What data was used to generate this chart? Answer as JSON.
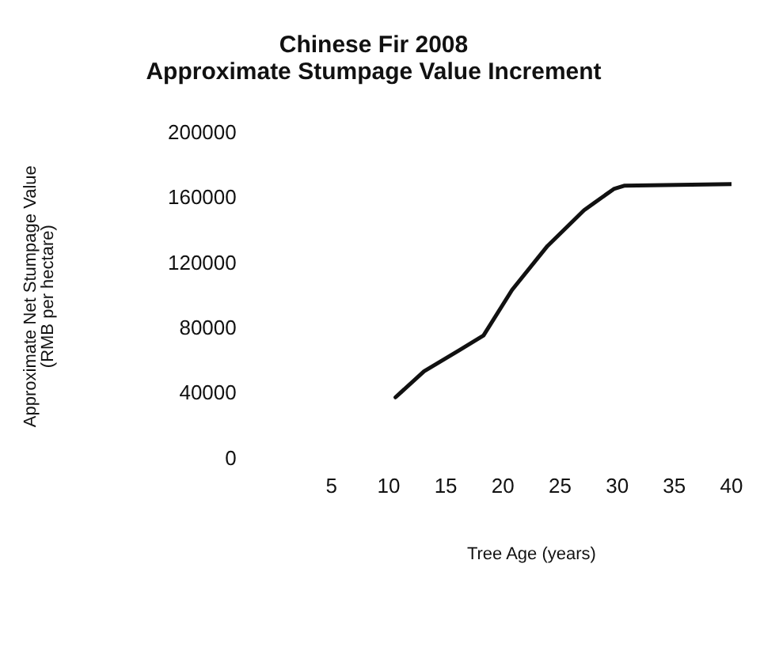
{
  "chart_data": {
    "type": "line",
    "title": [
      "Chinese Fir 2008",
      "Approximate Stumpage Value Increment"
    ],
    "xlabel": "Tree Age (years)",
    "ylabel": [
      "Approximate Net Stumpage Value",
      "(RMB per hectare)"
    ],
    "x": [
      10.6,
      13.1,
      16.2,
      18.3,
      20.8,
      23.9,
      27.1,
      29.7,
      30.6,
      40
    ],
    "series": [
      {
        "color": "#111111",
        "values": [
          38000,
          54000,
          67000,
          76000,
          104000,
          131000,
          153000,
          166000,
          168000,
          169000
        ]
      }
    ],
    "xlim": [
      5,
      40
    ],
    "xticks": [
      5,
      10,
      15,
      20,
      25,
      30,
      35,
      40
    ],
    "ylim": [
      0,
      200000
    ],
    "yticks": [
      0,
      40000,
      80000,
      120000,
      160000,
      200000
    ],
    "grid": false,
    "legend": false,
    "marker": "none",
    "line_style": "solid"
  }
}
